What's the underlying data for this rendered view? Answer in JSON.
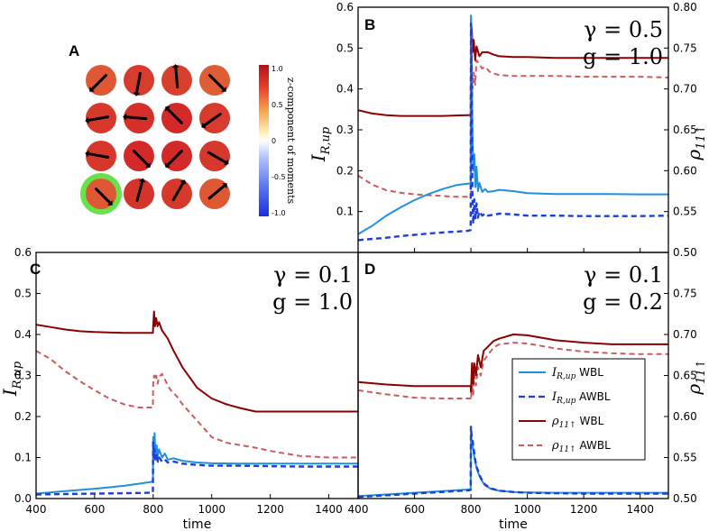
{
  "colors": {
    "wbl_current": "#1f8fe0",
    "awbl_current": "#1a3fe0",
    "wbl_pop": "#8b0000",
    "awbl_pop": "#d05a5a",
    "highlight": "#66e24a"
  },
  "legend": {
    "i_wbl": "WBL",
    "i_awbl": "AWBL",
    "r_wbl": "WBL",
    "r_awbl": "AWBL"
  },
  "panel_a": {
    "letter": "A",
    "colorbar_title": "z-component of moments",
    "colorbar_ticks": [
      "1.0",
      "0.5",
      "0",
      "-0.5",
      "-1.0"
    ],
    "cells": [
      {
        "value": 0.8,
        "angle": 225
      },
      {
        "value": 0.92,
        "angle": 260
      },
      {
        "value": 0.9,
        "angle": 95
      },
      {
        "value": 0.78,
        "angle": 315
      },
      {
        "value": 0.93,
        "angle": 190
      },
      {
        "value": 0.97,
        "angle": 175
      },
      {
        "value": 0.99,
        "angle": 135
      },
      {
        "value": 0.92,
        "angle": 215
      },
      {
        "value": 0.94,
        "angle": 170
      },
      {
        "value": 0.99,
        "angle": 315
      },
      {
        "value": 0.99,
        "angle": 225
      },
      {
        "value": 0.93,
        "angle": 330
      },
      {
        "value": 0.8,
        "angle": 315
      },
      {
        "value": 0.95,
        "angle": 75
      },
      {
        "value": 0.93,
        "angle": 60
      },
      {
        "value": 0.8,
        "angle": 40
      }
    ],
    "highlighted_cell": 12
  },
  "chart_data": [
    {
      "panel": "B",
      "type": "line",
      "annotation_gamma": "γ = 0.5",
      "annotation_g": "g = 1.0",
      "xlim": [
        400,
        1500
      ],
      "ylim": [
        0.0,
        0.6
      ],
      "y2lim": [
        0.5,
        0.8
      ],
      "xticks": [],
      "yticks": [
        "0.1",
        "0.2",
        "0.3",
        "0.4",
        "0.5",
        "0.6"
      ],
      "y2ticks": [
        "0.50",
        "0.55",
        "0.60",
        "0.65",
        "0.70",
        "0.75",
        "0.80"
      ],
      "xlabel": "",
      "ylabel": "I_{R,up}",
      "y2label": "ρ_{11↑}",
      "series": [
        {
          "name": "I_R,up WBL",
          "axis": "left",
          "style": "solid",
          "color_key": "wbl_current",
          "x": [
            400,
            450,
            500,
            550,
            600,
            650,
            700,
            750,
            790,
            799,
            800,
            802,
            805,
            808,
            812,
            816,
            820,
            825,
            830,
            840,
            850,
            860,
            880,
            900,
            950,
            1000,
            1100,
            1200,
            1300,
            1400,
            1500
          ],
          "y": [
            0.045,
            0.065,
            0.09,
            0.11,
            0.128,
            0.143,
            0.155,
            0.165,
            0.168,
            0.17,
            0.58,
            0.55,
            0.3,
            0.2,
            0.24,
            0.16,
            0.21,
            0.15,
            0.17,
            0.148,
            0.155,
            0.148,
            0.15,
            0.153,
            0.15,
            0.145,
            0.143,
            0.143,
            0.143,
            0.142,
            0.142
          ]
        },
        {
          "name": "I_R,up AWBL",
          "axis": "left",
          "style": "dashed",
          "color_key": "awbl_current",
          "x": [
            400,
            450,
            500,
            550,
            600,
            650,
            700,
            750,
            790,
            799,
            800,
            802,
            805,
            808,
            812,
            816,
            820,
            825,
            830,
            840,
            850,
            860,
            880,
            900,
            950,
            1000,
            1100,
            1200,
            1300,
            1400,
            1500
          ],
          "y": [
            0.03,
            0.033,
            0.036,
            0.04,
            0.043,
            0.046,
            0.049,
            0.051,
            0.053,
            0.055,
            0.56,
            0.5,
            0.15,
            0.07,
            0.13,
            0.08,
            0.12,
            0.085,
            0.1,
            0.09,
            0.095,
            0.09,
            0.092,
            0.095,
            0.093,
            0.09,
            0.09,
            0.089,
            0.089,
            0.089,
            0.09
          ]
        },
        {
          "name": "ρ11↑ WBL",
          "axis": "right",
          "style": "solid",
          "color_key": "wbl_pop",
          "x": [
            400,
            450,
            500,
            550,
            600,
            700,
            790,
            799,
            800,
            803,
            806,
            810,
            815,
            820,
            830,
            840,
            850,
            860,
            880,
            900,
            950,
            1000,
            1100,
            1200,
            1300,
            1400,
            1500
          ],
          "y": [
            0.674,
            0.67,
            0.668,
            0.667,
            0.667,
            0.667,
            0.668,
            0.668,
            0.755,
            0.775,
            0.745,
            0.76,
            0.735,
            0.752,
            0.74,
            0.745,
            0.745,
            0.745,
            0.742,
            0.74,
            0.739,
            0.739,
            0.738,
            0.738,
            0.738,
            0.738,
            0.738
          ]
        },
        {
          "name": "ρ11↑ AWBL",
          "axis": "right",
          "style": "dashed",
          "color_key": "awbl_pop",
          "x": [
            400,
            450,
            500,
            550,
            600,
            650,
            700,
            750,
            790,
            799,
            800,
            803,
            806,
            810,
            815,
            820,
            830,
            840,
            850,
            870,
            900,
            950,
            1000,
            1100,
            1200,
            1300,
            1400,
            1500
          ],
          "y": [
            0.594,
            0.583,
            0.576,
            0.573,
            0.571,
            0.57,
            0.569,
            0.568,
            0.568,
            0.568,
            0.72,
            0.73,
            0.7,
            0.72,
            0.705,
            0.735,
            0.73,
            0.725,
            0.727,
            0.72,
            0.717,
            0.716,
            0.716,
            0.716,
            0.715,
            0.715,
            0.715,
            0.714
          ]
        }
      ]
    },
    {
      "panel": "C",
      "type": "line",
      "annotation_gamma": "γ = 0.1",
      "annotation_g": "g = 1.0",
      "xlim": [
        400,
        1500
      ],
      "ylim": [
        0.0,
        0.6
      ],
      "y2lim": [
        0.5,
        0.8
      ],
      "xticks": [
        "400",
        "600",
        "800",
        "1000",
        "1200",
        "1400"
      ],
      "yticks": [
        "0.0",
        "0.1",
        "0.2",
        "0.3",
        "0.4",
        "0.5",
        "0.6"
      ],
      "y2ticks": [],
      "xlabel": "time",
      "ylabel": "I_{R,up}",
      "y2label": "",
      "series": [
        {
          "name": "I_R,up WBL",
          "axis": "left",
          "style": "solid",
          "color_key": "wbl_current",
          "x": [
            400,
            500,
            600,
            700,
            790,
            799,
            800,
            802,
            805,
            808,
            812,
            816,
            820,
            830,
            840,
            850,
            870,
            900,
            950,
            1000,
            1100,
            1200,
            1300,
            1400,
            1500
          ],
          "y": [
            0.012,
            0.018,
            0.024,
            0.031,
            0.04,
            0.042,
            0.15,
            0.12,
            0.16,
            0.1,
            0.13,
            0.105,
            0.12,
            0.1,
            0.11,
            0.095,
            0.098,
            0.092,
            0.088,
            0.086,
            0.085,
            0.085,
            0.085,
            0.085,
            0.085
          ]
        },
        {
          "name": "I_R,up AWBL",
          "axis": "left",
          "style": "dashed",
          "color_key": "awbl_current",
          "x": [
            400,
            500,
            600,
            700,
            790,
            799,
            800,
            802,
            805,
            808,
            812,
            816,
            820,
            830,
            840,
            850,
            870,
            900,
            950,
            1000,
            1100,
            1200,
            1300,
            1400,
            1500
          ],
          "y": [
            0.01,
            0.011,
            0.012,
            0.013,
            0.014,
            0.015,
            0.14,
            0.1,
            0.12,
            0.09,
            0.11,
            0.09,
            0.1,
            0.09,
            0.095,
            0.088,
            0.09,
            0.085,
            0.082,
            0.08,
            0.08,
            0.079,
            0.078,
            0.078,
            0.078
          ]
        },
        {
          "name": "ρ11↑ WBL",
          "axis": "right",
          "style": "solid",
          "color_key": "wbl_pop",
          "x": [
            400,
            450,
            500,
            550,
            600,
            700,
            790,
            799,
            800,
            803,
            806,
            810,
            815,
            820,
            830,
            840,
            850,
            870,
            900,
            950,
            1000,
            1050,
            1100,
            1150,
            1200,
            1300,
            1400,
            1500
          ],
          "y": [
            0.712,
            0.709,
            0.706,
            0.704,
            0.703,
            0.702,
            0.702,
            0.702,
            0.71,
            0.728,
            0.71,
            0.72,
            0.71,
            0.715,
            0.705,
            0.7,
            0.695,
            0.68,
            0.66,
            0.635,
            0.622,
            0.615,
            0.61,
            0.606,
            0.606,
            0.606,
            0.606,
            0.606
          ]
        },
        {
          "name": "ρ11↑ AWBL",
          "axis": "right",
          "style": "dashed",
          "color_key": "awbl_pop",
          "x": [
            400,
            450,
            500,
            550,
            600,
            650,
            700,
            750,
            790,
            799,
            800,
            803,
            806,
            810,
            815,
            820,
            830,
            840,
            850,
            860,
            880,
            900,
            950,
            1000,
            1050,
            1100,
            1150,
            1200,
            1300,
            1400,
            1500
          ],
          "y": [
            0.68,
            0.67,
            0.655,
            0.643,
            0.632,
            0.622,
            0.615,
            0.611,
            0.611,
            0.611,
            0.64,
            0.65,
            0.645,
            0.65,
            0.64,
            0.648,
            0.652,
            0.645,
            0.638,
            0.632,
            0.625,
            0.615,
            0.595,
            0.575,
            0.568,
            0.565,
            0.562,
            0.558,
            0.552,
            0.55,
            0.55
          ]
        }
      ]
    },
    {
      "panel": "D",
      "type": "line",
      "annotation_gamma": "γ = 0.1",
      "annotation_g": "g = 0.2",
      "xlim": [
        400,
        1500
      ],
      "ylim": [
        0.0,
        0.6
      ],
      "y2lim": [
        0.5,
        0.8
      ],
      "xticks": [
        "400",
        "600",
        "800",
        "1000",
        "1200",
        "1400"
      ],
      "yticks": [],
      "y2ticks": [
        "0.50",
        "0.55",
        "0.60",
        "0.65",
        "0.70",
        "0.75"
      ],
      "xlabel": "time",
      "ylabel": "",
      "y2label": "ρ_{11↑}",
      "series": [
        {
          "name": "I_R,up WBL",
          "axis": "left",
          "style": "solid",
          "color_key": "wbl_current",
          "x": [
            400,
            500,
            600,
            700,
            790,
            799,
            800,
            803,
            806,
            810,
            815,
            820,
            830,
            840,
            850,
            870,
            900,
            950,
            1000,
            1100,
            1200,
            1300,
            1400,
            1500
          ],
          "y": [
            0.006,
            0.01,
            0.014,
            0.018,
            0.022,
            0.023,
            0.16,
            0.14,
            0.13,
            0.11,
            0.09,
            0.075,
            0.055,
            0.042,
            0.032,
            0.024,
            0.019,
            0.016,
            0.015,
            0.014,
            0.014,
            0.014,
            0.014,
            0.014
          ]
        },
        {
          "name": "I_R,up AWBL",
          "axis": "left",
          "style": "dashed",
          "color_key": "awbl_current",
          "x": [
            400,
            500,
            600,
            700,
            790,
            799,
            800,
            803,
            806,
            810,
            815,
            820,
            830,
            840,
            850,
            870,
            900,
            950,
            1000,
            1100,
            1200,
            1300,
            1400,
            1500
          ],
          "y": [
            0.004,
            0.008,
            0.012,
            0.016,
            0.02,
            0.021,
            0.175,
            0.15,
            0.14,
            0.12,
            0.095,
            0.078,
            0.058,
            0.044,
            0.034,
            0.025,
            0.019,
            0.016,
            0.014,
            0.013,
            0.012,
            0.012,
            0.012,
            0.012
          ]
        },
        {
          "name": "ρ11↑ WBL",
          "axis": "right",
          "style": "solid",
          "color_key": "wbl_pop",
          "x": [
            400,
            500,
            600,
            700,
            790,
            799,
            800,
            804,
            808,
            812,
            818,
            825,
            835,
            845,
            860,
            880,
            900,
            950,
            1000,
            1050,
            1100,
            1200,
            1300,
            1400,
            1500
          ],
          "y": [
            0.642,
            0.639,
            0.637,
            0.637,
            0.637,
            0.637,
            0.63,
            0.665,
            0.64,
            0.665,
            0.65,
            0.675,
            0.66,
            0.68,
            0.685,
            0.692,
            0.695,
            0.7,
            0.699,
            0.696,
            0.693,
            0.69,
            0.688,
            0.688,
            0.688
          ]
        },
        {
          "name": "ρ11↑ AWBL",
          "axis": "right",
          "style": "dashed",
          "color_key": "awbl_pop",
          "x": [
            400,
            500,
            600,
            700,
            790,
            799,
            800,
            804,
            808,
            812,
            818,
            825,
            835,
            845,
            860,
            880,
            900,
            950,
            1000,
            1050,
            1100,
            1200,
            1300,
            1400,
            1500
          ],
          "y": [
            0.632,
            0.627,
            0.623,
            0.622,
            0.622,
            0.622,
            0.62,
            0.64,
            0.625,
            0.65,
            0.638,
            0.66,
            0.65,
            0.668,
            0.675,
            0.684,
            0.688,
            0.69,
            0.689,
            0.686,
            0.683,
            0.679,
            0.677,
            0.676,
            0.676
          ]
        }
      ]
    }
  ]
}
